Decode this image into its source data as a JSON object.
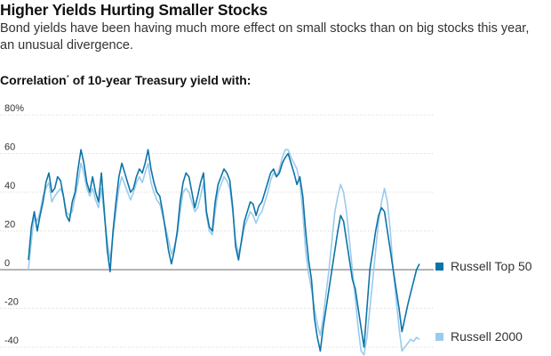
{
  "header": {
    "title": "Higher Yields Hurting Smaller Stocks",
    "subtitle": "Bond yields have been having much more effect on small stocks than on big stocks this year, an unusual divergence."
  },
  "chart_data": {
    "type": "line",
    "title": "Correlation",
    "title_marker": "*",
    "title_suffix": " of 10-year Treasury yield with:",
    "ylim": [
      -45,
      80
    ],
    "yticks": [
      -40,
      -20,
      0,
      20,
      40,
      60,
      80
    ],
    "ytick_labels": [
      "-40",
      "-20",
      "0",
      "20",
      "40",
      "60",
      "80%"
    ],
    "grid": true,
    "legend_position": "right",
    "colors": {
      "top50": "#0d74a8",
      "r2000": "#9bcbec",
      "grid": "#d9d9d9",
      "zero": "#888888"
    },
    "series": [
      {
        "name": "Russell Top 50",
        "key": "top50",
        "values": [
          5,
          22,
          30,
          20,
          28,
          35,
          45,
          50,
          40,
          42,
          48,
          46,
          38,
          28,
          25,
          35,
          40,
          52,
          62,
          55,
          45,
          40,
          48,
          40,
          35,
          50,
          30,
          10,
          -1,
          20,
          35,
          48,
          55,
          50,
          45,
          40,
          42,
          48,
          52,
          50,
          55,
          62,
          52,
          45,
          40,
          38,
          30,
          20,
          10,
          3,
          10,
          20,
          35,
          45,
          50,
          48,
          40,
          32,
          38,
          45,
          50,
          30,
          22,
          20,
          35,
          44,
          48,
          52,
          50,
          46,
          32,
          12,
          5,
          15,
          25,
          30,
          35,
          34,
          28,
          33,
          35,
          40,
          45,
          50,
          52,
          48,
          50,
          55,
          58,
          60,
          55,
          50,
          44,
          48,
          38,
          20,
          5,
          -5,
          -25,
          -35,
          -42,
          -30,
          -20,
          -10,
          0,
          10,
          20,
          28,
          25,
          15,
          5,
          -5,
          -10,
          -20,
          -30,
          -40,
          -20,
          0,
          10,
          20,
          28,
          32,
          30,
          20,
          10,
          0,
          -10,
          -20,
          -32,
          -25,
          -18,
          -12,
          -6,
          0,
          3
        ]
      },
      {
        "name": "Russell 2000",
        "key": "r2000",
        "values": [
          0,
          15,
          28,
          25,
          30,
          38,
          42,
          45,
          35,
          38,
          40,
          42,
          38,
          30,
          28,
          30,
          38,
          45,
          55,
          50,
          42,
          38,
          42,
          36,
          32,
          42,
          28,
          15,
          5,
          18,
          30,
          42,
          48,
          44,
          40,
          36,
          40,
          45,
          48,
          45,
          50,
          55,
          45,
          40,
          36,
          34,
          28,
          22,
          15,
          8,
          12,
          18,
          30,
          40,
          42,
          40,
          35,
          30,
          32,
          38,
          45,
          28,
          20,
          18,
          30,
          40,
          44,
          48,
          46,
          42,
          30,
          15,
          8,
          14,
          22,
          26,
          30,
          28,
          24,
          28,
          30,
          35,
          40,
          46,
          50,
          48,
          52,
          58,
          62,
          62,
          58,
          55,
          52,
          45,
          30,
          10,
          -2,
          -10,
          -20,
          -28,
          -34,
          -25,
          -12,
          0,
          15,
          30,
          38,
          44,
          40,
          30,
          15,
          0,
          -15,
          -30,
          -42,
          -44,
          -35,
          -20,
          -5,
          10,
          25,
          35,
          42,
          35,
          20,
          0,
          -15,
          -30,
          -42,
          -40,
          -38,
          -36,
          -37,
          -35,
          -36
        ]
      }
    ]
  }
}
